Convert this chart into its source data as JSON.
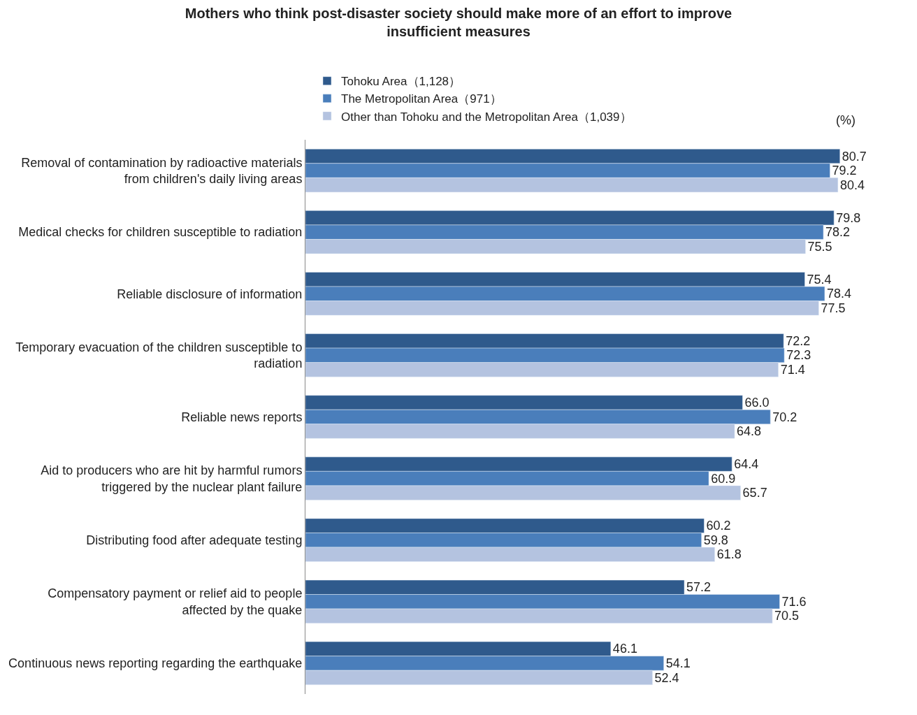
{
  "chart_data": {
    "type": "bar",
    "orientation": "horizontal",
    "title": "Mothers who think post-disaster society should make more of an effort to improve insufficient measures",
    "categories": [
      "Removal of contamination by radioactive materials from children's daily living areas",
      "Medical checks for children susceptible to radiation",
      "Reliable disclosure of information",
      "Temporary evacuation of the children susceptible to radiation",
      "Reliable news reports",
      "Aid to producers who are hit by harmful rumors triggered by the nuclear plant failure",
      "Distributing food after adequate testing",
      "Compensatory payment or relief aid to people affected by the quake",
      "Continuous news reporting regarding the earthquake"
    ],
    "series": [
      {
        "name": "Tohoku Area（1,128）",
        "color": "#2f5a8c",
        "values": [
          80.7,
          79.8,
          75.4,
          72.2,
          66.0,
          64.4,
          60.2,
          57.2,
          46.1
        ],
        "value_labels": [
          "80.7",
          "79.8",
          "75.4",
          "72.2",
          "66.0",
          "64.4",
          "60.2",
          "57.2",
          "46.1"
        ]
      },
      {
        "name": "The Metropolitan Area（971）",
        "color": "#4a7ebb",
        "values": [
          79.2,
          78.2,
          78.4,
          72.3,
          70.2,
          60.9,
          59.8,
          71.6,
          54.1
        ],
        "value_labels": [
          "79.2",
          "78.2",
          "78.4",
          "72.3",
          "70.2",
          "60.9",
          "59.8",
          "71.6",
          "54.1"
        ]
      },
      {
        "name": "Other than Tohoku and the Metropolitan Area（1,039）",
        "color": "#b4c3e0",
        "values": [
          80.4,
          75.5,
          77.5,
          71.4,
          64.8,
          65.7,
          61.8,
          70.5,
          52.4
        ],
        "value_labels": [
          "80.4",
          "75.5",
          "77.5",
          "71.4",
          "64.8",
          "65.7",
          "61.8",
          "70.5",
          "52.4"
        ]
      }
    ],
    "legend": "top",
    "annotations": [
      "(%)"
    ]
  }
}
